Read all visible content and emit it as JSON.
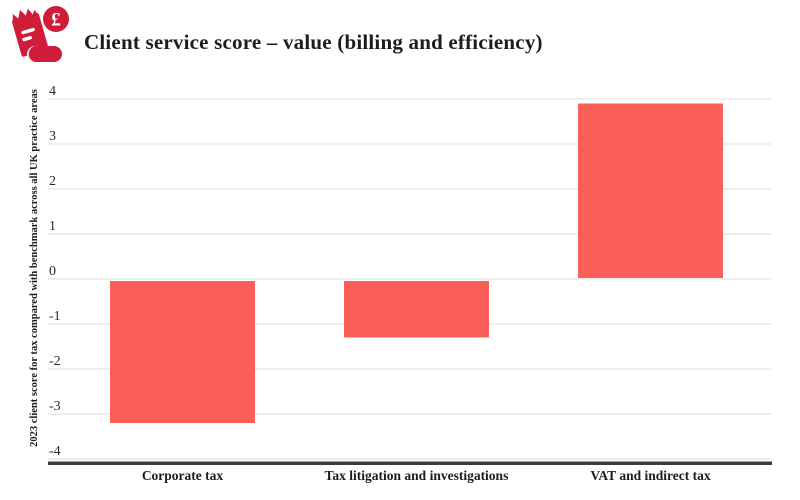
{
  "header": {
    "title": "Client service score – value (billing and efficiency)",
    "icon": "receipt-pound-icon",
    "icon_currency_symbol": "£"
  },
  "colors": {
    "bar": "#fb5f5a",
    "icon_red": "#cf1d39",
    "axis_line": "#3d3d3d",
    "gridline": "#e4e4e4",
    "heading_text": "#1d1d1b",
    "tick_text": "#2b2b2b"
  },
  "chart_data": {
    "type": "bar",
    "title": "Client service score – value (billing and efficiency)",
    "categories": [
      "Corporate tax",
      "Tax litigation and investigations",
      "VAT and indirect tax"
    ],
    "values": [
      -3.2,
      -1.3,
      3.9
    ],
    "xlabel": "",
    "ylabel": "2023 client score for tax compared with benchmark across all UK practice areas",
    "ylim": [
      -4,
      4
    ],
    "yticks": [
      4,
      3,
      2,
      1,
      0,
      -1,
      -2,
      -3,
      -4
    ],
    "grid": true,
    "legend_position": "none",
    "bar_color": "#fb5f5a"
  }
}
